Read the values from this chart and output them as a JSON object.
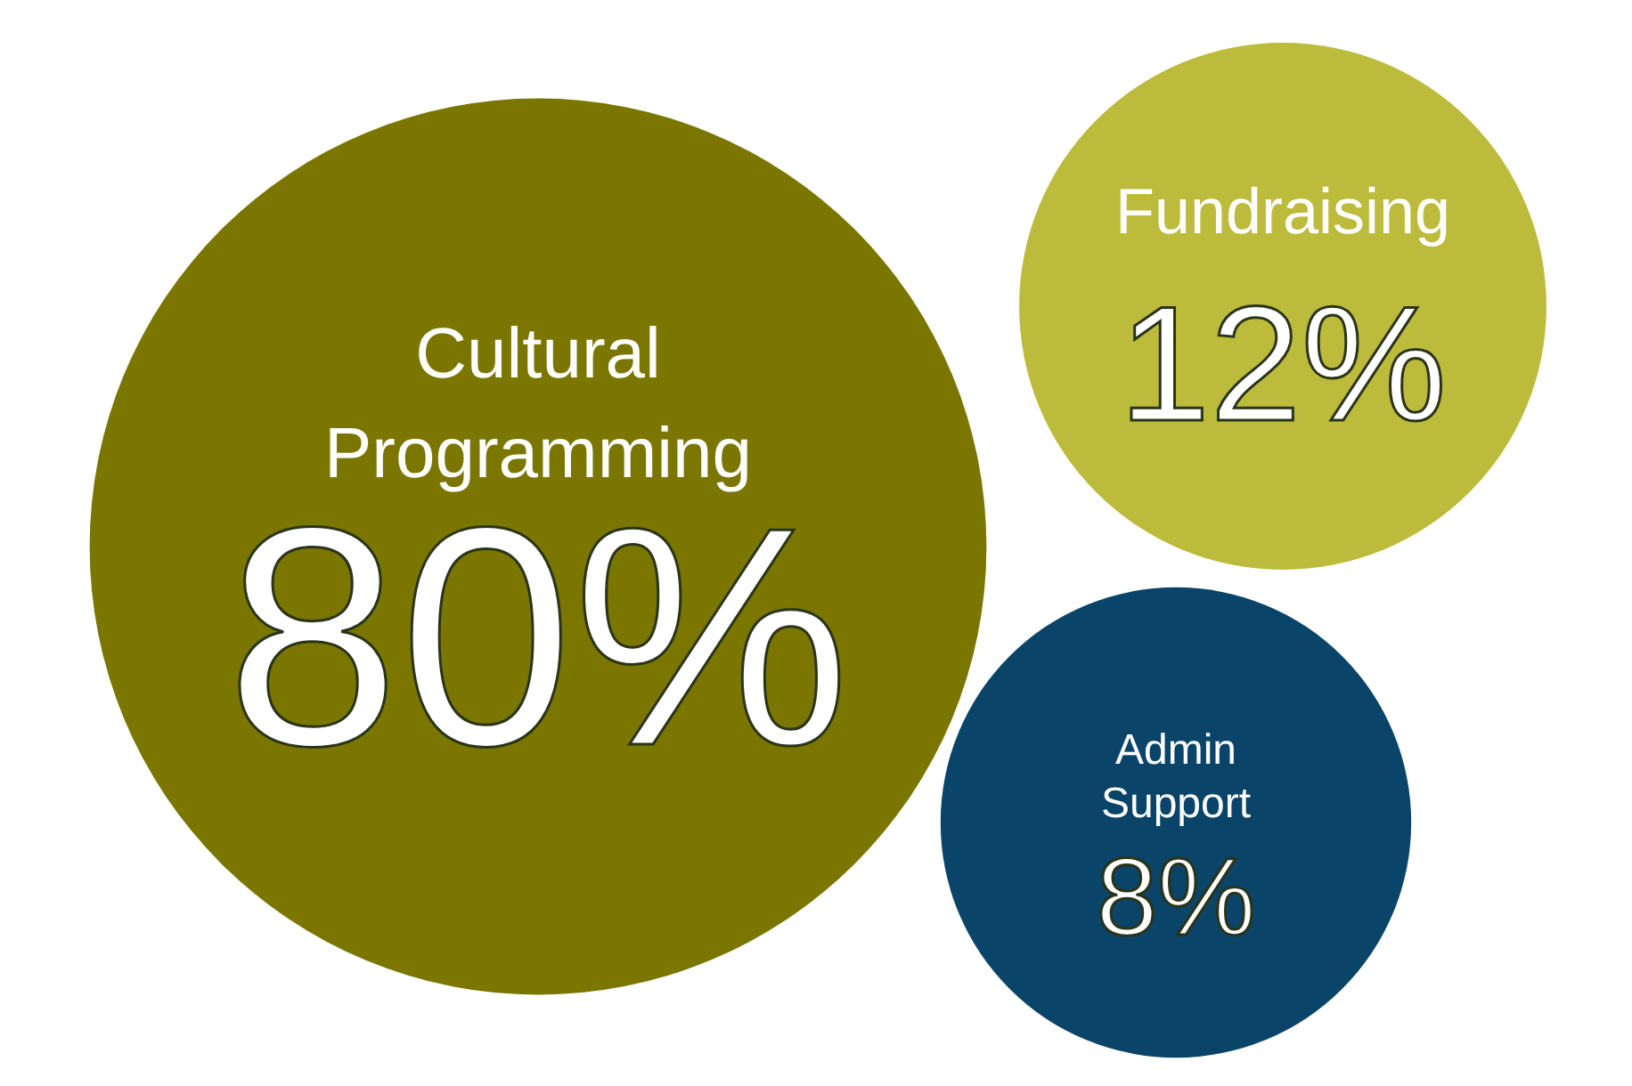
{
  "chart_data": {
    "type": "other",
    "categories": [
      "Cultural Programming",
      "Fundraising",
      "Admin Support"
    ],
    "values": [
      80,
      12,
      8
    ],
    "value_labels": [
      "80%",
      "12%",
      "8%"
    ],
    "colors": [
      "#7a7600",
      "#bdbb3c",
      "#0a4468"
    ]
  }
}
